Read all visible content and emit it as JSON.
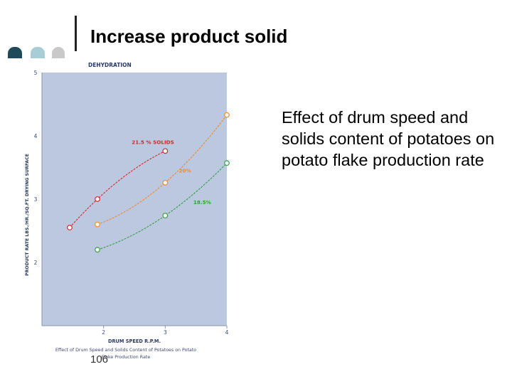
{
  "slide": {
    "title": "Increase product solid",
    "description": "Effect of drum speed and solids content of potatoes on potato flake production rate",
    "page_number": "106",
    "decoration_colors": [
      "#1f4a5a",
      "#a9cdd6",
      "#c9c9c9"
    ]
  },
  "chart_data": {
    "type": "line",
    "title": "DEHYDRATION",
    "xlabel": "DRUM SPEED R.P.M.",
    "ylabel": "PRODUCT RATE LBS./HR./SQ.FT. DRYING SURFACE",
    "caption_line1": "Effect of Drum Speed and Solids Content of Potatoes on Potato",
    "caption_line2": "Flake Production Rate",
    "x_ticks": [
      "2",
      "3",
      "4"
    ],
    "y_ticks": [
      "2",
      "3",
      "4",
      "5"
    ],
    "xlim": [
      1,
      4
    ],
    "ylim": [
      1,
      5
    ],
    "grid": false,
    "background_color": "#bcc8e0",
    "series": [
      {
        "name": "21.5 % SOLIDS",
        "color": "#d02a2a",
        "label_pos": [
          2.8,
          3.87
        ],
        "points": [
          [
            1.45,
            2.55
          ],
          [
            1.9,
            3.0
          ],
          [
            3.0,
            3.76
          ]
        ]
      },
      {
        "name": "20%",
        "color": "#ef8a2c",
        "label_pos": [
          3.32,
          3.42
        ],
        "points": [
          [
            1.9,
            2.6
          ],
          [
            3.0,
            3.26
          ],
          [
            4.0,
            4.33
          ]
        ]
      },
      {
        "name": "18.5%",
        "color": "#34a046",
        "label_pos": [
          3.6,
          2.92
        ],
        "points": [
          [
            1.9,
            2.2
          ],
          [
            3.0,
            2.74
          ],
          [
            4.0,
            3.57
          ]
        ]
      }
    ]
  }
}
